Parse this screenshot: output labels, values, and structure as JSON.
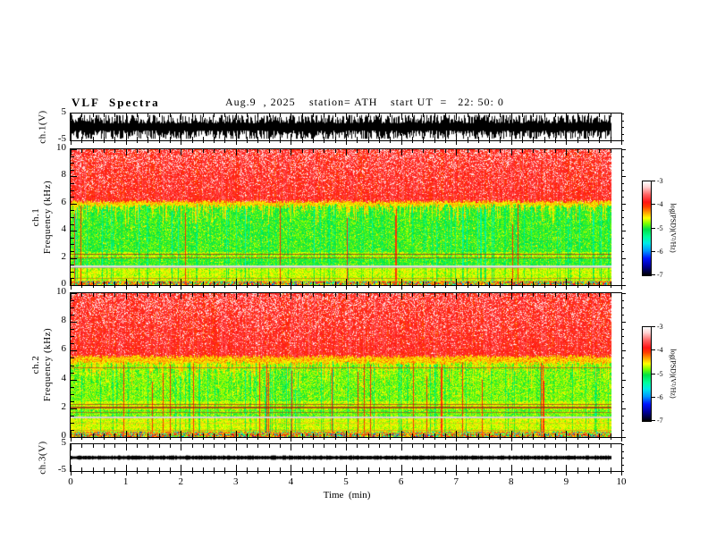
{
  "header": {
    "title": "VLF  Spectra",
    "date": "Aug.9  , 2025",
    "station": "station= ATH",
    "start_ut": "start UT  =   22: 50: 0"
  },
  "x_axis": {
    "label": "Time  (min)",
    "ticks": [
      "0",
      "1",
      "2",
      "3",
      "4",
      "5",
      "6",
      "7",
      "8",
      "9",
      "10"
    ],
    "minor_per_major": 5,
    "range_min": [
      0,
      10
    ],
    "data_end_fraction": 0.982
  },
  "panels": {
    "ch1_wave": {
      "ylabel": "ch.1(V)",
      "ytick_top": "5",
      "ytick_bottom": "-5"
    },
    "ch1_spec": {
      "ylabel_channel": "ch.1",
      "ylabel_axis": "Frequency  (kHz)",
      "yticks": [
        "10",
        "8",
        "6",
        "4",
        "2",
        "0"
      ]
    },
    "ch2_spec": {
      "ylabel_channel": "ch.2",
      "ylabel_axis": "Frequency  (kHz)",
      "yticks": [
        "10",
        "8",
        "6",
        "4",
        "2",
        "0"
      ]
    },
    "ch3_wave": {
      "ylabel": "ch.3(V)",
      "ytick_top": "5",
      "ytick_bottom": "-5"
    }
  },
  "colorbar": {
    "unit_label": "log(PSD)(V²/Hz)",
    "ticks": [
      "-3",
      "-4",
      "-5",
      "-6",
      "-7"
    ],
    "gradient_stops": [
      [
        "#ffffff",
        0
      ],
      [
        "#ffd2d2",
        6
      ],
      [
        "#ff6464",
        14
      ],
      [
        "#ff1414",
        22
      ],
      [
        "#ff3c00",
        27
      ],
      [
        "#ff9e00",
        33
      ],
      [
        "#ffff00",
        39
      ],
      [
        "#78ff00",
        45
      ],
      [
        "#00e146",
        51
      ],
      [
        "#00ff9b",
        59
      ],
      [
        "#00e9e9",
        66
      ],
      [
        "#0096ff",
        74
      ],
      [
        "#0014ff",
        82
      ],
      [
        "#0000a0",
        90
      ],
      [
        "#000000",
        100
      ]
    ],
    "colormap_stops": [
      [
        -3.0,
        255,
        255,
        255
      ],
      [
        -3.25,
        255,
        200,
        200
      ],
      [
        -3.6,
        255,
        90,
        90
      ],
      [
        -3.9,
        255,
        20,
        20
      ],
      [
        -4.1,
        255,
        60,
        0
      ],
      [
        -4.3,
        255,
        158,
        0
      ],
      [
        -4.55,
        255,
        255,
        0
      ],
      [
        -4.8,
        120,
        255,
        0
      ],
      [
        -5.05,
        0,
        225,
        70
      ],
      [
        -5.35,
        0,
        255,
        155
      ],
      [
        -5.65,
        0,
        233,
        233
      ],
      [
        -5.95,
        0,
        150,
        255
      ],
      [
        -6.3,
        0,
        20,
        255
      ],
      [
        -6.6,
        0,
        0,
        160
      ],
      [
        -7.0,
        0,
        0,
        0
      ]
    ]
  },
  "chart_data": [
    {
      "type": "line",
      "title": "ch.1 time series",
      "xlabel": "Time (min)",
      "ylabel": "ch.1(V)",
      "xlim": [
        0,
        10
      ],
      "ylim": [
        -5,
        5
      ],
      "x_extent_of_data": [
        0,
        9.82
      ],
      "description": "Dense broadband noise waveform oscillating about 0 V with peaks near ±4.5 V over the whole 0–9.8 min record.",
      "render": {
        "seed": 11,
        "amp": 0.95,
        "flat": false
      }
    },
    {
      "type": "heatmap",
      "title": "ch.1 VLF spectrogram",
      "xlabel": "Time (min)",
      "ylabel": "Frequency (kHz)",
      "zlabel": "log(PSD)(V²/Hz)",
      "xlim": [
        0,
        10
      ],
      "ylim": [
        0,
        10
      ],
      "zlim": [
        -7,
        -3
      ],
      "legend_position": "right colorbar",
      "grid": false,
      "summary_bands": [
        {
          "freq_khz": [
            6.1,
            10
          ],
          "psd_log": -3.8,
          "appearance": "saturated red with white/pink speckle and vertical striping"
        },
        {
          "freq_khz": [
            5.8,
            6.1
          ],
          "psd_log": -4.5,
          "appearance": "jagged orange-yellow fringe with spikes descending ~1.5 kHz"
        },
        {
          "freq_khz": [
            2.4,
            5.8
          ],
          "psd_log": -4.95,
          "appearance": "bright green, yellow mottle, dark vertical streaks, sparse thin red vertical lines"
        },
        {
          "freq_khz": [
            2.0,
            2.4
          ],
          "psd_log": -4.8,
          "appearance": "yellow-green band with dark red horizontal lines near 2.3 and 2.05 kHz"
        },
        {
          "freq_khz": [
            1.3,
            1.45
          ],
          "psd_log": -4.7,
          "appearance": "pale gray horizontal band"
        },
        {
          "freq_khz": [
            0.35,
            1.3
          ],
          "psd_log": -4.7,
          "appearance": "yellow-green mottle"
        },
        {
          "freq_khz": [
            0,
            0.35
          ],
          "psd_log": -5.0,
          "appearance": "multicolour speckle including cyan, blue and black"
        }
      ],
      "render": {
        "seed": 101,
        "red_bottom_khz": 6.15,
        "red_v": -3.85,
        "red_noise": 0.22,
        "white_speckle": 0.3,
        "fringe_khz": 0.3,
        "fringe_v": -4.45,
        "spike_prob": 0.5,
        "spike_max_khz": 1.7,
        "col_stripe": 0.18,
        "dark_streak_prob": 0.16,
        "dark_streak_amt": 0.32,
        "red_vline_prob": 0.014,
        "bands": [
          {
            "lo": 2.45,
            "hi": 6.5,
            "v": -4.95,
            "noise": 0.18,
            "yellow": 0.1
          },
          {
            "lo": 2.0,
            "hi": 2.45,
            "v": -4.8,
            "noise": 0.22,
            "yellow": 0.3
          },
          {
            "lo": 1.44,
            "hi": 2.0,
            "v": -4.95,
            "noise": 0.18,
            "yellow": 0.08
          },
          {
            "lo": 1.3,
            "hi": 1.44,
            "v": -4.7,
            "noise": 0.1,
            "special": "gray"
          },
          {
            "lo": 0.35,
            "hi": 1.3,
            "v": -4.68,
            "noise": 0.2,
            "yellow": 0.3
          },
          {
            "lo": 0.0,
            "hi": 0.35,
            "v": -5.0,
            "noise": 0.3,
            "special": "speckle"
          }
        ],
        "hlines": [
          {
            "f": 2.3,
            "color": [
              150,
              40,
              20
            ],
            "a": 0.75,
            "w": 1
          },
          {
            "f": 2.05,
            "color": [
              150,
              40,
              20
            ],
            "a": 0.6,
            "w": 1
          },
          {
            "f": 1.42,
            "color": [
              225,
              225,
              225
            ],
            "a": 0.9,
            "w": 2
          },
          {
            "f": 1.3,
            "color": [
              160,
              160,
              160
            ],
            "a": 0.8,
            "w": 1
          },
          {
            "f": 0.52,
            "color": [
              200,
              70,
              30
            ],
            "a": 0.5,
            "w": 1
          },
          {
            "f": 0.3,
            "color": [
              220,
              200,
              60
            ],
            "a": 0.6,
            "w": 1
          }
        ]
      }
    },
    {
      "type": "heatmap",
      "title": "ch.2 VLF spectrogram",
      "xlabel": "Time (min)",
      "ylabel": "Frequency (kHz)",
      "zlabel": "log(PSD)(V²/Hz)",
      "xlim": [
        0,
        10
      ],
      "ylim": [
        0,
        10
      ],
      "zlim": [
        -7,
        -3
      ],
      "legend_position": "right colorbar",
      "grid": false,
      "summary_bands": [
        {
          "freq_khz": [
            5.6,
            10
          ],
          "psd_log": -3.8,
          "appearance": "saturated red with white speckle, red reaches lower than ch.1"
        },
        {
          "freq_khz": [
            4.6,
            5.6
          ],
          "psd_log": -4.5,
          "appearance": "wide orange-yellow fringe with deep spikes"
        },
        {
          "freq_khz": [
            2.5,
            4.6
          ],
          "psd_log": -4.85,
          "appearance": "green-yellow mottle, many thin red vertical lines, red line near 4.85 kHz"
        },
        {
          "freq_khz": [
            1.9,
            2.5
          ],
          "psd_log": -4.7,
          "appearance": "yellow band with strong dark-red horizontal lines near 2.3 and 2.1 kHz"
        },
        {
          "freq_khz": [
            1.3,
            1.45
          ],
          "psd_log": -4.7,
          "appearance": "pale gray horizontal band"
        },
        {
          "freq_khz": [
            0.35,
            1.3
          ],
          "psd_log": -4.65,
          "appearance": "yellow-green mottle with orange lines near 1.0 and 0.5 kHz"
        },
        {
          "freq_khz": [
            0,
            0.35
          ],
          "psd_log": -5.0,
          "appearance": "multicolour speckle including cyan, blue and black"
        }
      ],
      "render": {
        "seed": 202,
        "red_bottom_khz": 5.6,
        "red_v": -3.85,
        "red_noise": 0.22,
        "white_speckle": 0.28,
        "fringe_khz": 0.45,
        "fringe_v": -4.4,
        "spike_prob": 0.6,
        "spike_max_khz": 1.9,
        "col_stripe": 0.18,
        "dark_streak_prob": 0.14,
        "dark_streak_amt": 0.3,
        "red_vline_prob": 0.035,
        "bands": [
          {
            "lo": 2.5,
            "hi": 6.0,
            "v": -4.85,
            "noise": 0.2,
            "yellow": 0.18
          },
          {
            "lo": 1.9,
            "hi": 2.5,
            "v": -4.7,
            "noise": 0.22,
            "yellow": 0.35
          },
          {
            "lo": 1.44,
            "hi": 1.9,
            "v": -4.85,
            "noise": 0.2,
            "yellow": 0.15
          },
          {
            "lo": 1.3,
            "hi": 1.44,
            "v": -4.7,
            "noise": 0.1,
            "special": "gray"
          },
          {
            "lo": 0.35,
            "hi": 1.3,
            "v": -4.65,
            "noise": 0.22,
            "yellow": 0.35
          },
          {
            "lo": 0.0,
            "hi": 0.35,
            "v": -5.0,
            "noise": 0.3,
            "special": "speckle"
          }
        ],
        "hlines": [
          {
            "f": 4.85,
            "color": [
              200,
              40,
              20
            ],
            "a": 0.6,
            "w": 1
          },
          {
            "f": 2.3,
            "color": [
              170,
              40,
              20
            ],
            "a": 0.7,
            "w": 1
          },
          {
            "f": 2.1,
            "color": [
              150,
              40,
              20
            ],
            "a": 0.8,
            "w": 2
          },
          {
            "f": 1.75,
            "color": [
              170,
              60,
              30
            ],
            "a": 0.6,
            "w": 1
          },
          {
            "f": 1.42,
            "color": [
              210,
              210,
              210
            ],
            "a": 0.85,
            "w": 2
          },
          {
            "f": 1.0,
            "color": [
              220,
              170,
              40
            ],
            "a": 0.5,
            "w": 1
          },
          {
            "f": 0.5,
            "color": [
              220,
              120,
              30
            ],
            "a": 0.6,
            "w": 1
          },
          {
            "f": 0.32,
            "color": [
              230,
              200,
              50
            ],
            "a": 0.6,
            "w": 1
          }
        ]
      }
    },
    {
      "type": "line",
      "title": "ch.3 time series",
      "xlabel": "Time (min)",
      "ylabel": "ch.3(V)",
      "xlim": [
        0,
        10
      ],
      "ylim": [
        -5,
        5
      ],
      "x_extent_of_data": [
        0,
        9.82
      ],
      "description": "Essentially flat trace at 0 V drawn as a thin solid black line for the full record.",
      "render": {
        "seed": 13,
        "amp": 0.06,
        "flat": true
      }
    }
  ]
}
